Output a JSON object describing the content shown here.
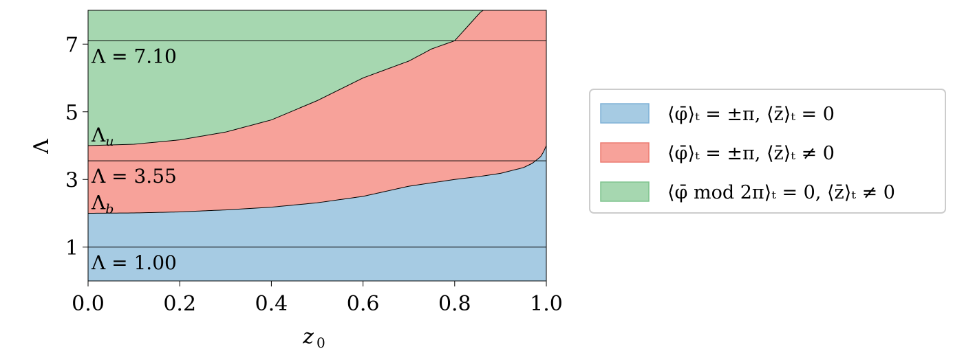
{
  "chart_data": {
    "type": "area",
    "xlabel": "z_0",
    "ylabel": "Λ",
    "xlim": [
      0.0,
      1.0
    ],
    "ylim": [
      0.0,
      8.0
    ],
    "xticks": [
      0.0,
      0.2,
      0.4,
      0.6,
      0.8,
      1.0
    ],
    "xtick_labels": [
      "0.0",
      "0.2",
      "0.4",
      "0.6",
      "0.8",
      "1.0"
    ],
    "yticks": [
      1,
      3,
      5,
      7
    ],
    "ytick_labels": [
      "1",
      "3",
      "5",
      "7"
    ],
    "grid": false,
    "legend_position": "right-outside",
    "series": [
      {
        "name": "⟨φ̄⟩ₜ = ±π, ⟨z̄⟩ₜ = 0",
        "color": "#a6cbe3",
        "edge_color": "#7fb1d6",
        "lower_boundary": "zero",
        "upper_boundary": "Λ_b"
      },
      {
        "name": "⟨φ̄⟩ₜ = ±π, ⟨z̄⟩ₜ ≠ 0",
        "color": "#f7a29a",
        "edge_color": "#ec7c72",
        "lower_boundary": "Λ_b",
        "upper_boundary": "Λ_u"
      },
      {
        "name": "⟨φ̄ mod 2π⟩ₜ = 0, ⟨z̄⟩ₜ ≠ 0",
        "color": "#a6d7b0",
        "edge_color": "#7fc38d",
        "lower_boundary": "Λ_u",
        "upper_boundary": "top"
      }
    ],
    "boundaries": {
      "Λ_b": {
        "x": [
          0.0,
          0.1,
          0.2,
          0.3,
          0.4,
          0.5,
          0.6,
          0.7,
          0.8,
          0.85,
          0.9,
          0.95,
          0.97,
          0.99,
          1.0
        ],
        "y": [
          2.0,
          2.01,
          2.04,
          2.1,
          2.18,
          2.31,
          2.5,
          2.8,
          3.0,
          3.08,
          3.18,
          3.35,
          3.48,
          3.7,
          4.0
        ]
      },
      "Λ_u": {
        "x": [
          0.0,
          0.1,
          0.2,
          0.3,
          0.4,
          0.5,
          0.6,
          0.7,
          0.75,
          0.8,
          0.83,
          0.86
        ],
        "y": [
          4.0,
          4.04,
          4.17,
          4.4,
          4.76,
          5.33,
          6.0,
          6.5,
          6.86,
          7.1,
          7.55,
          8.0
        ]
      }
    },
    "hlines": [
      1.0,
      3.55,
      7.1
    ],
    "annotations": [
      {
        "text": "Λ = 1.00",
        "x": 0.0,
        "y": 1.0
      },
      {
        "text": "Λ_b",
        "x": 0.0,
        "y": 2.0
      },
      {
        "text": "Λ = 3.55",
        "x": 0.0,
        "y": 3.55
      },
      {
        "text": "Λ_u",
        "x": 0.0,
        "y": 4.0
      },
      {
        "text": "Λ = 7.10",
        "x": 0.0,
        "y": 7.1
      }
    ]
  }
}
